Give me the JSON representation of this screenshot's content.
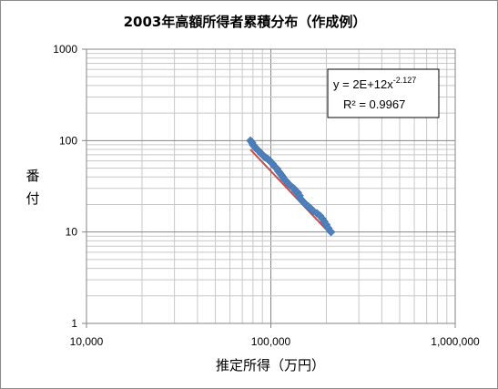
{
  "chart_data": {
    "type": "scatter",
    "title": "2003年高額所得者累積分布（作成例）",
    "xlabel": "推定所得（万円）",
    "ylabel_chars": [
      "番",
      "付"
    ],
    "x_scale": "log",
    "y_scale": "log",
    "xlim": [
      10000,
      1000000
    ],
    "ylim": [
      1,
      1000
    ],
    "x_ticks": [
      "10,000",
      "100,000",
      "1,000,000"
    ],
    "y_ticks": [
      "1",
      "10",
      "100",
      "1000"
    ],
    "grid": true,
    "marker_color": "#4f81bd",
    "trendline_color": "#c0504d",
    "trendline": {
      "type": "power",
      "coefficient": 2000000000000.0,
      "exponent": -2.127,
      "equation_base": "y = 2E+12x",
      "equation_exp": "-2.127",
      "r2_text": "R² = 0.9967"
    },
    "series": [
      {
        "points": [
          [
            77500,
            100
          ],
          [
            79000,
            95
          ],
          [
            80000,
            90
          ],
          [
            81500,
            86
          ],
          [
            83000,
            82
          ],
          [
            85000,
            79
          ],
          [
            86500,
            76
          ],
          [
            88000,
            73
          ],
          [
            90000,
            70
          ],
          [
            92000,
            67
          ],
          [
            94000,
            65
          ],
          [
            96000,
            63
          ],
          [
            98000,
            61
          ],
          [
            100000,
            58
          ],
          [
            102000,
            56
          ],
          [
            104000,
            53
          ],
          [
            106000,
            51
          ],
          [
            108000,
            49
          ],
          [
            110000,
            46
          ],
          [
            112000,
            44
          ],
          [
            114000,
            42
          ],
          [
            116000,
            40
          ],
          [
            118000,
            38
          ],
          [
            121000,
            36
          ],
          [
            124000,
            34
          ],
          [
            128000,
            32
          ],
          [
            133000,
            30
          ],
          [
            136000,
            28
          ],
          [
            140000,
            27
          ],
          [
            143000,
            25
          ],
          [
            145000,
            23
          ],
          [
            148000,
            22
          ],
          [
            151000,
            21
          ],
          [
            155000,
            20
          ],
          [
            160000,
            19
          ],
          [
            165000,
            18
          ],
          [
            170000,
            17
          ],
          [
            178000,
            16
          ],
          [
            185000,
            15
          ],
          [
            190000,
            14
          ],
          [
            195000,
            13
          ],
          [
            200000,
            12
          ],
          [
            205000,
            11
          ],
          [
            212000,
            10
          ]
        ]
      }
    ]
  }
}
